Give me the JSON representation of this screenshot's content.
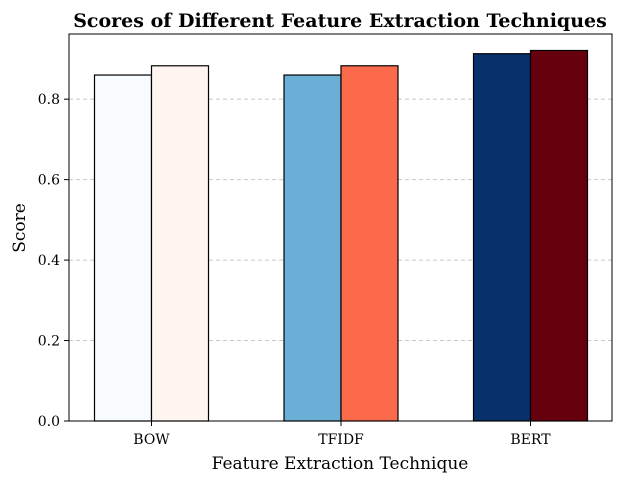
{
  "chart_data": {
    "type": "bar",
    "title": "Scores of Different Feature Extraction Techniques",
    "xlabel": "Feature Extraction Technique",
    "ylabel": "Score",
    "categories": [
      "BOW",
      "TFIDF",
      "BERT"
    ],
    "ylim": [
      0,
      0.962
    ],
    "yticks": [
      0.0,
      0.2,
      0.4,
      0.6,
      0.8
    ],
    "ytick_labels": [
      "0.0",
      "0.2",
      "0.4",
      "0.6",
      "0.8"
    ],
    "grid": "horizontal dashed",
    "legend": "none",
    "series": [
      {
        "values": [
          0.86,
          0.86,
          0.913
        ],
        "colors": [
          "#f7fbff",
          "#6baed6",
          "#08306b"
        ]
      },
      {
        "values": [
          0.883,
          0.883,
          0.921
        ],
        "colors": [
          "#fff5f0",
          "#fb6a4a",
          "#67000d"
        ]
      }
    ],
    "edge_color": "#000000"
  }
}
